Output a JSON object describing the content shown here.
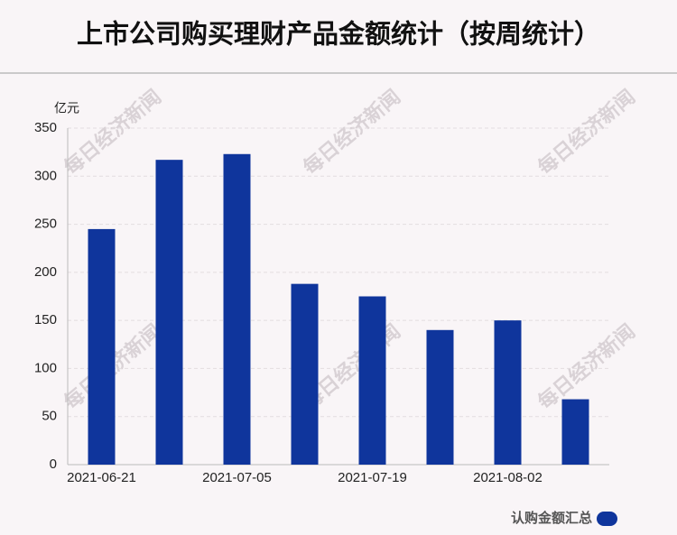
{
  "chart_data": {
    "type": "bar",
    "title": "上市公司购买理财产品金额统计（按周统计）",
    "y_axis_label": "亿元",
    "watermark": "每日经济新闻",
    "categories": [
      "2021-06-21",
      null,
      "2021-07-05",
      null,
      "2021-07-19",
      null,
      "2021-08-02",
      null
    ],
    "series": [
      {
        "name": "认购金额汇总",
        "color": "#0f359c",
        "values": [
          245,
          317,
          323,
          188,
          175,
          140,
          150,
          68
        ]
      }
    ],
    "ylim": [
      0,
      350
    ],
    "yticks": [
      0,
      50,
      100,
      150,
      200,
      250,
      300,
      350
    ],
    "grid": true,
    "legend": "bottom-right"
  }
}
